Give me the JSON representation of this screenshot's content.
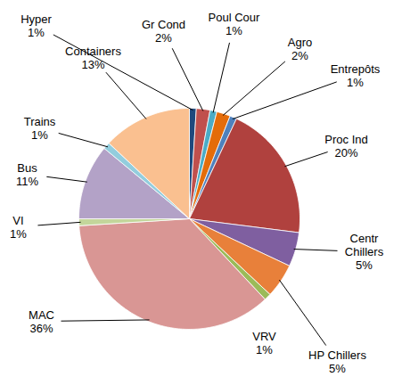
{
  "chart_data": {
    "type": "pie",
    "categories": [
      "Hyper",
      "Gr Cond",
      "Poul Cour",
      "Agro",
      "Entrepôts",
      "Proc Ind",
      "Centr Chillers",
      "HP Chillers",
      "VRV",
      "MAC",
      "VI",
      "Bus",
      "Trains",
      "Containers"
    ],
    "values": [
      1,
      2,
      1,
      2,
      1,
      20,
      5,
      5,
      1,
      36,
      1,
      11,
      1,
      13
    ],
    "value_labels": [
      "1%",
      "2%",
      "1%",
      "2%",
      "1%",
      "20%",
      "5%",
      "5%",
      "1%",
      "36%",
      "1%",
      "11%",
      "1%",
      "13%"
    ],
    "colors": [
      "#1F497D",
      "#C0504D",
      "#4BACC6",
      "#E46C0A",
      "#4F81BD",
      "#B0413E",
      "#7F5FA0",
      "#E8803A",
      "#9BBB59",
      "#D99694",
      "#C3D69B",
      "#B3A2C7",
      "#93CDDD",
      "#FAC090"
    ],
    "data_labels": true
  }
}
